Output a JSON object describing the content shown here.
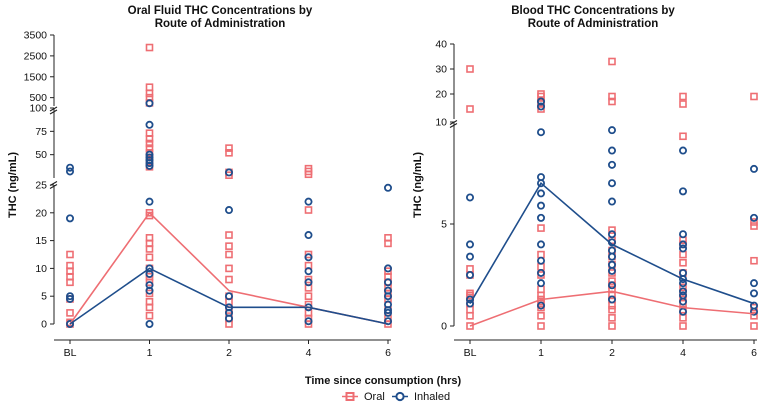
{
  "figure": {
    "xlabel": "Time since consumption (hrs)",
    "legend": [
      {
        "name": "Oral",
        "color": "#ee6e73",
        "marker": "square"
      },
      {
        "name": "Inhaled",
        "color": "#1f4e8c",
        "marker": "circle"
      }
    ]
  },
  "chart_data": [
    {
      "type": "scatter",
      "title_lines": [
        "Oral Fluid THC Concentrations by",
        "Route of Administration"
      ],
      "ylabel": "THC (ng/mL)",
      "categories": [
        "BL",
        "1",
        "2",
        "4",
        "6"
      ],
      "y_segments": [
        {
          "range": [
            0,
            25
          ],
          "ticks": [
            0,
            5,
            10,
            15,
            20,
            25
          ]
        },
        {
          "range": [
            25,
            100
          ],
          "ticks": [
            50,
            75,
            100
          ]
        },
        {
          "range": [
            100,
            3500
          ],
          "ticks": [
            500,
            1500,
            2500,
            3500
          ]
        }
      ],
      "series": [
        {
          "name": "Oral",
          "mean": [
            0,
            20,
            6,
            3,
            0
          ],
          "points": [
            [
              0,
              0.3,
              2,
              4.5,
              7.5,
              8.5,
              9.5,
              10.5,
              12.5
            ],
            [
              1.5,
              3,
              4,
              5.5,
              7.5,
              8.5,
              9,
              10,
              12,
              13.5,
              14.5,
              15.5,
              19.5,
              20,
              37,
              42,
              47,
              52,
              57,
              62,
              67,
              73,
              250,
              500,
              700,
              1000,
              2900
            ],
            [
              0,
              1,
              2.5,
              4,
              5,
              8,
              10,
              12.5,
              14,
              16,
              28,
              31,
              52,
              57
            ],
            [
              0,
              1,
              2,
              3.5,
              5,
              6.5,
              8,
              10.5,
              12.5,
              20.5,
              29,
              32,
              35
            ],
            [
              0,
              1,
              2.5,
              4.5,
              5.5,
              6.5,
              7.5,
              8.5,
              9.5,
              14.5,
              15.5
            ]
          ]
        },
        {
          "name": "Inhaled",
          "mean": [
            0,
            10,
            3,
            3,
            0
          ],
          "points": [
            [
              0,
              4.5,
              5,
              19,
              32,
              36
            ],
            [
              0,
              6,
              7,
              9,
              10,
              22,
              38,
              41,
              44,
              47,
              50,
              82,
              230
            ],
            [
              1,
              2,
              3,
              5,
              20.5,
              31
            ],
            [
              0.5,
              3,
              7.5,
              9.5,
              12,
              16,
              22
            ],
            [
              0.5,
              2,
              2.5,
              3.5,
              5,
              6,
              7.5,
              10,
              24.5
            ]
          ]
        }
      ]
    },
    {
      "type": "scatter",
      "title_lines": [
        "Blood THC Concentrations by",
        "Route of Administration"
      ],
      "ylabel": "THC (ng/mL)",
      "categories": [
        "BL",
        "1",
        "2",
        "4",
        "6"
      ],
      "y_segments": [
        {
          "range": [
            0,
            10
          ],
          "ticks": [
            0,
            5,
            10
          ]
        },
        {
          "range": [
            10,
            40
          ],
          "ticks": [
            20,
            30,
            40
          ]
        }
      ],
      "series": [
        {
          "name": "Oral",
          "mean": [
            0,
            1.3,
            1.7,
            0.9,
            0.6
          ],
          "points": [
            [
              0,
              0.5,
              0.8,
              1.1,
              1.4,
              1.5,
              1.6,
              2.5,
              2.8,
              14,
              30
            ],
            [
              0,
              0.5,
              0.9,
              1.1,
              1.3,
              1.5,
              1.8,
              2.5,
              2.9,
              3.5,
              4.8,
              14,
              16,
              17,
              19,
              20
            ],
            [
              0,
              0.4,
              0.8,
              1.0,
              1.3,
              1.5,
              1.8,
              2,
              2.2,
              2.6,
              3,
              3.4,
              3.7,
              4.2,
              4.7,
              17,
              19,
              33
            ],
            [
              0,
              0.4,
              0.8,
              1.1,
              1.4,
              1.6,
              1.9,
              2.6,
              3.1,
              3.5,
              4.0,
              4.2,
              9.3,
              16,
              19
            ],
            [
              0,
              0.5,
              0.9,
              3.2,
              4.9,
              5.1,
              19
            ]
          ]
        },
        {
          "name": "Inhaled",
          "mean": [
            1.1,
            7,
            4,
            2.3,
            1.1
          ],
          "points": [
            [
              1.1,
              1.3,
              2.5,
              3.4,
              4.0,
              6.3
            ],
            [
              1.0,
              2.1,
              2.6,
              3.2,
              4.0,
              5.3,
              5.9,
              6.5,
              7.0,
              7.3,
              9.5,
              15,
              17
            ],
            [
              1.3,
              2,
              2.7,
              3.0,
              3.4,
              3.7,
              4.1,
              4.5,
              6.1,
              7.0,
              7.9,
              8.6,
              9.6
            ],
            [
              0.7,
              1.2,
              1.5,
              1.7,
              2.1,
              2.3,
              2.6,
              3.8,
              4.0,
              4.5,
              6.6,
              8.6
            ],
            [
              0.7,
              1.0,
              1.6,
              2.1,
              5.3,
              7.7
            ]
          ]
        }
      ]
    }
  ]
}
